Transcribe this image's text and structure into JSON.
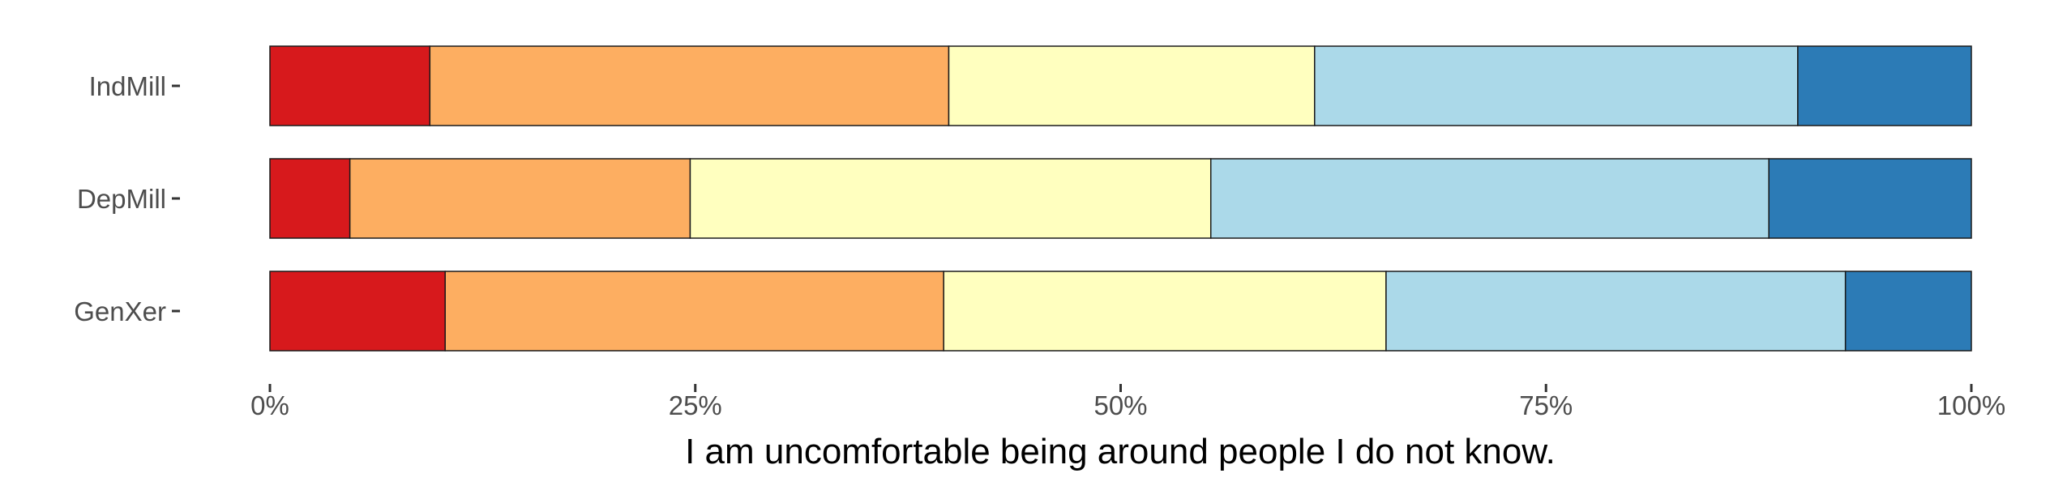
{
  "chart_data": {
    "type": "bar",
    "orientation": "horizontal",
    "stacked": true,
    "percent": true,
    "categories": [
      "IndMill",
      "DepMill",
      "GenXer"
    ],
    "series": [
      {
        "values": [
          9.4,
          4.7,
          10.3
        ],
        "color": "#d7191c"
      },
      {
        "values": [
          30.5,
          20.0,
          29.3
        ],
        "color": "#fdae61"
      },
      {
        "values": [
          21.5,
          30.6,
          26.0
        ],
        "color": "#ffffbf"
      },
      {
        "values": [
          28.4,
          32.8,
          27.0
        ],
        "color": "#abd9e9"
      },
      {
        "values": [
          10.2,
          11.9,
          7.4
        ],
        "color": "#2c7bb6"
      }
    ],
    "xticks": [
      "0%",
      "25%",
      "50%",
      "75%",
      "100%"
    ],
    "xlim": [
      0,
      100
    ],
    "xlabel": "I am uncomfortable being around people I do not know.",
    "ylabel": "",
    "legend": "none",
    "grid": false
  }
}
